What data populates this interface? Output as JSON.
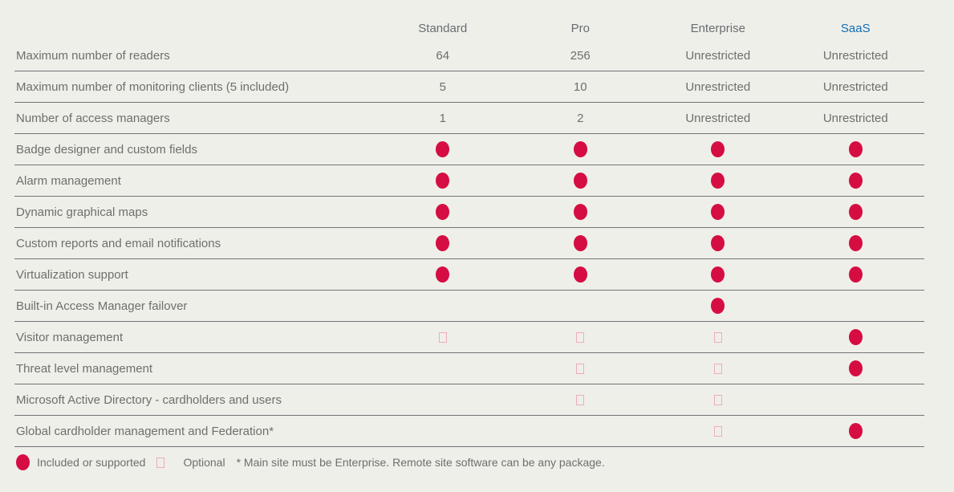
{
  "colors": {
    "page_background": "#efefe9",
    "row_line": "#737378",
    "feature_text": "#6e6e6e",
    "header_text": "#686d73",
    "saas_header_text": "#0e6eb6",
    "included_dot": "#d50d42",
    "optional_square_border": "#ecacbc"
  },
  "table": {
    "columns": [
      "Standard",
      "Pro",
      "Enterprise",
      "SaaS"
    ],
    "rows": [
      {
        "feature": "Maximum number of readers",
        "cells": [
          "64",
          "256",
          "Unrestricted",
          "Unrestricted"
        ]
      },
      {
        "feature": "Maximum number of monitoring clients (5 included)",
        "cells": [
          "5",
          "10",
          "Unrestricted",
          "Unrestricted"
        ]
      },
      {
        "feature": "Number of access managers",
        "cells": [
          "1",
          "2",
          "Unrestricted",
          "Unrestricted"
        ]
      },
      {
        "feature": "Badge designer and custom fields",
        "cells": [
          "dot",
          "dot",
          "dot",
          "dot"
        ]
      },
      {
        "feature": "Alarm management",
        "cells": [
          "dot",
          "dot",
          "dot",
          "dot"
        ]
      },
      {
        "feature": "Dynamic graphical maps",
        "cells": [
          "dot",
          "dot",
          "dot",
          "dot"
        ]
      },
      {
        "feature": "Custom reports and email notifications",
        "cells": [
          "dot",
          "dot",
          "dot",
          "dot"
        ]
      },
      {
        "feature": "Virtualization support",
        "cells": [
          "dot",
          "dot",
          "dot",
          "dot"
        ]
      },
      {
        "feature": "Built-in Access Manager failover",
        "cells": [
          "",
          "",
          "dot",
          ""
        ]
      },
      {
        "feature": "Visitor management",
        "cells": [
          "square",
          "square",
          "square",
          "dot"
        ]
      },
      {
        "feature": "Threat level management",
        "cells": [
          "",
          "square",
          "square",
          "dot"
        ]
      },
      {
        "feature": "Microsoft Active Directory - cardholders and users",
        "cells": [
          "",
          "square",
          "square",
          ""
        ]
      },
      {
        "feature": "Global cardholder management and Federation*",
        "cells": [
          "",
          "",
          "square",
          "dot"
        ]
      }
    ]
  },
  "legend": {
    "included_label": "Included or supported",
    "optional_label": "Optional",
    "note": "* Main site must be Enterprise. Remote site software can be any package."
  }
}
